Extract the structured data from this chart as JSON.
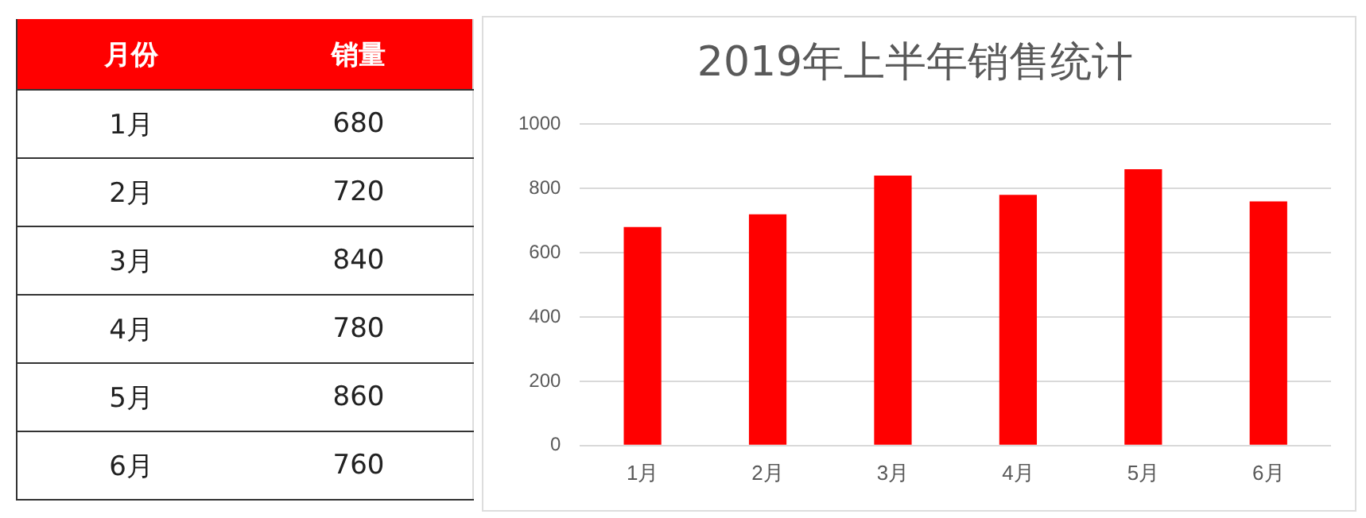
{
  "chart_data": [
    {
      "type": "heatmap",
      "ylabel": "月份",
      "categories": [
        "销量"
      ],
      "y_categories": [
        "1月",
        "2月",
        "3月",
        "4月",
        "5月",
        "6月"
      ],
      "cells": [
        [
          680
        ],
        [
          720
        ],
        [
          840
        ],
        [
          780
        ],
        [
          860
        ],
        [
          760
        ]
      ],
      "color": "#ff0000",
      "data_labels": true
    },
    {
      "type": "bar",
      "title": "2019年上半年销售统计",
      "categories": [
        "1月",
        "2月",
        "3月",
        "4月",
        "5月",
        "6月"
      ],
      "values": [
        680,
        720,
        840,
        780,
        860,
        760
      ],
      "color": "#ff0000",
      "ylim": [
        0,
        1000
      ],
      "yticks": [
        0,
        200,
        400,
        600,
        800,
        1000
      ],
      "grid": "y",
      "legend": false
    }
  ]
}
